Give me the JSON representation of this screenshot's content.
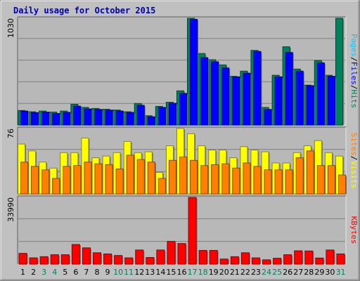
{
  "chart_data": [
    {
      "type": "bar",
      "title": "Daily usage for October 2015",
      "categories": [
        "1",
        "2",
        "3",
        "4",
        "5",
        "6",
        "7",
        "8",
        "9",
        "10",
        "11",
        "12",
        "13",
        "14",
        "15",
        "16",
        "17",
        "18",
        "19",
        "20",
        "21",
        "22",
        "23",
        "24",
        "25",
        "26",
        "27",
        "28",
        "29",
        "30",
        "31"
      ],
      "weekend_days": [
        "3",
        "4",
        "10",
        "11",
        "17",
        "18",
        "24",
        "25",
        "31"
      ],
      "ymax_label": "1030",
      "ylim": [
        0,
        1030
      ],
      "ylabel_parts": [
        "Pages",
        "Files",
        "Hits"
      ],
      "separator": "/",
      "series": [
        {
          "name": "Hits",
          "values": [
            140,
            128,
            135,
            125,
            135,
            200,
            170,
            160,
            152,
            145,
            128,
            208,
            90,
            180,
            220,
            330,
            1030,
            690,
            630,
            580,
            470,
            520,
            720,
            170,
            480,
            755,
            540,
            385,
            622,
            480,
            1030
          ]
        },
        {
          "name": "Files",
          "values": [
            135,
            120,
            125,
            112,
            122,
            182,
            155,
            150,
            144,
            135,
            122,
            190,
            80,
            170,
            210,
            305,
            1020,
            650,
            610,
            550,
            465,
            500,
            710,
            150,
            465,
            700,
            520,
            380,
            600,
            470,
            0
          ]
        },
        {
          "name": "Pages",
          "values": [
            0,
            0,
            0,
            0,
            0,
            0,
            0,
            0,
            0,
            0,
            0,
            0,
            0,
            0,
            0,
            0,
            0,
            0,
            0,
            0,
            0,
            0,
            0,
            0,
            0,
            0,
            0,
            0,
            0,
            0,
            0
          ]
        }
      ],
      "colors": {
        "Hits": "#00805c",
        "Files": "#0000ff",
        "Pages": "#00c8ff"
      }
    },
    {
      "type": "bar",
      "ymax_label": "76",
      "ylim": [
        0,
        76
      ],
      "ylabel_parts": [
        "Sites",
        "Visits"
      ],
      "separator": "/",
      "series": [
        {
          "name": "Visits",
          "values": [
            58,
            50,
            37,
            30,
            48,
            48,
            65,
            42,
            44,
            48,
            61,
            48,
            49,
            25,
            56,
            76,
            70,
            56,
            51,
            51,
            42,
            55,
            51,
            49,
            36,
            36,
            48,
            56,
            62,
            48,
            44
          ]
        },
        {
          "name": "Sites",
          "values": [
            37,
            32,
            28,
            18,
            32,
            33,
            37,
            35,
            34,
            29,
            45,
            40,
            37,
            18,
            39,
            43,
            39,
            33,
            34,
            35,
            30,
            36,
            32,
            28,
            28,
            28,
            42,
            50,
            33,
            33,
            22
          ]
        }
      ],
      "colors": {
        "Visits": "#ffff00",
        "Sites": "#ff8000"
      }
    },
    {
      "type": "bar",
      "ymax_label": "33990",
      "ylim": [
        0,
        33990
      ],
      "ylabel_parts": [
        "KBytes"
      ],
      "series": [
        {
          "name": "KBytes",
          "values": [
            5500,
            3200,
            3800,
            4800,
            4800,
            10000,
            8300,
            5800,
            5200,
            4400,
            3200,
            7200,
            3400,
            7200,
            11600,
            10500,
            33990,
            7000,
            7000,
            2600,
            3800,
            5800,
            3200,
            2200,
            3000,
            4800,
            6800,
            6700,
            3100,
            7200,
            5200
          ]
        }
      ],
      "colors": {
        "KBytes": "#ff0000"
      }
    }
  ]
}
